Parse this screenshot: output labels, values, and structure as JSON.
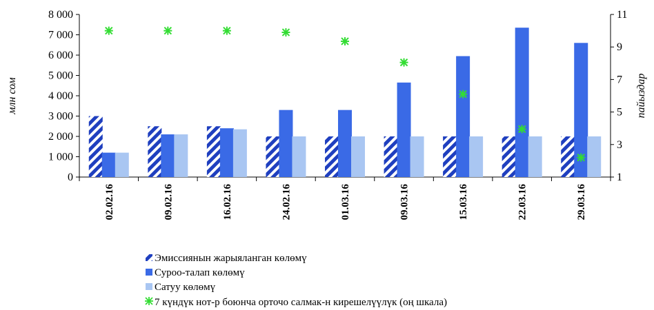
{
  "chart_data": {
    "type": "bar",
    "categories": [
      "02.02.16",
      "09.02.16",
      "16.02.16",
      "24.02.16",
      "01.03.16",
      "09.03.16",
      "15.03.16",
      "22.03.16",
      "29.03.16"
    ],
    "series": [
      {
        "name": "Эмиссиянын жарыяланган көлөмү",
        "values": [
          3000,
          2500,
          2500,
          2000,
          2000,
          2000,
          2000,
          2000,
          2000
        ],
        "color": "#1f3fbf",
        "pattern": "diagonal-stripes"
      },
      {
        "name": "Суроо-талап көлөмү",
        "values": [
          1200,
          2100,
          2400,
          3300,
          3300,
          4650,
          5950,
          7350,
          6600
        ],
        "color": "#3a6ae6"
      },
      {
        "name": "Сатуу көлөмү",
        "values": [
          1200,
          2100,
          2350,
          2000,
          2000,
          2000,
          2000,
          2000,
          2000
        ],
        "color": "#a9c6f2"
      },
      {
        "name": "7 күндүк нот-р боюнча орточо салмак-н кирешелүүлүк (оң шкала)",
        "type": "scatter",
        "axis": "right",
        "values": [
          10.0,
          10.0,
          10.0,
          9.9,
          9.35,
          8.05,
          6.1,
          3.95,
          2.2
        ],
        "color": "#33dd33",
        "marker": "asterisk"
      }
    ],
    "ylabel": "млн сом",
    "y2label": "пайыздар",
    "ylim": [
      0,
      8000
    ],
    "yticks": [
      "0",
      "1 000",
      "2 000",
      "3 000",
      "4 000",
      "5 000",
      "6 000",
      "7 000",
      "8 000"
    ],
    "y2lim": [
      1,
      11
    ],
    "y2ticks": [
      "1",
      "3",
      "5",
      "7",
      "9",
      "11"
    ],
    "grid": false,
    "legend": "bottom"
  }
}
